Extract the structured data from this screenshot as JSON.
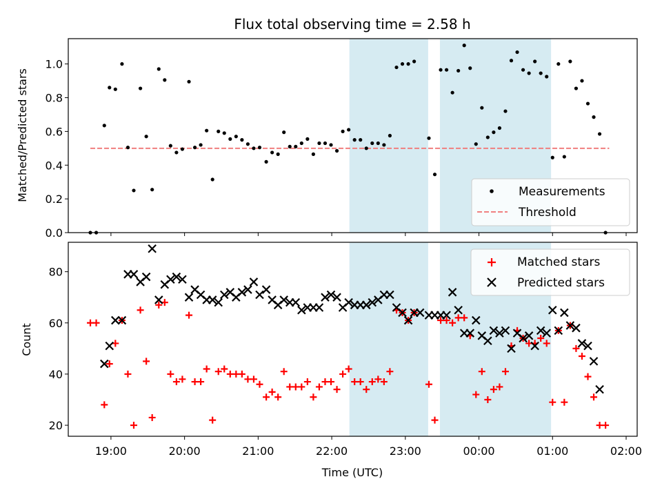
{
  "figure": {
    "title": "Flux total observing time = 2.58 h",
    "xlabel": "Time (UTC)",
    "x_tick_labels": [
      "19:00",
      "20:00",
      "21:00",
      "22:00",
      "23:00",
      "00:00",
      "01:00",
      "02:00"
    ]
  },
  "colors": {
    "measurement": "#000000",
    "threshold": "#f07f7f",
    "matched": "#ff0000",
    "predicted": "#000000",
    "span": "#add8e6"
  },
  "chart_data": [
    {
      "type": "scatter",
      "ylabel": "Matched/Predicted stars",
      "xlim": [
        18.42,
        26.15
      ],
      "ylim": [
        0,
        1.15
      ],
      "y_ticks": [
        0.0,
        0.2,
        0.4,
        0.6,
        0.8,
        1.0
      ],
      "y_tick_labels": [
        "0.0",
        "0.2",
        "0.4",
        "0.6",
        "0.8",
        "1.0"
      ],
      "shaded_spans": [
        [
          22.24,
          23.31
        ],
        [
          23.47,
          24.98
        ]
      ],
      "legend": {
        "position": "lower right",
        "entries": [
          "Measurements",
          "Threshold"
        ]
      },
      "threshold": {
        "name": "Threshold",
        "y": 0.5,
        "x_range": [
          18.72,
          25.77
        ]
      },
      "series": [
        {
          "name": "Measurements",
          "points": [
            [
              18.72,
              0.0
            ],
            [
              18.8,
              0.0
            ],
            [
              18.91,
              0.635
            ],
            [
              18.98,
              0.86
            ],
            [
              19.06,
              0.85
            ],
            [
              19.15,
              1.0
            ],
            [
              19.23,
              0.505
            ],
            [
              19.31,
              0.25
            ],
            [
              19.4,
              0.855
            ],
            [
              19.48,
              0.57
            ],
            [
              19.56,
              0.255
            ],
            [
              19.65,
              0.97
            ],
            [
              19.73,
              0.905
            ],
            [
              19.81,
              0.515
            ],
            [
              19.89,
              0.475
            ],
            [
              19.97,
              0.495
            ],
            [
              20.06,
              0.895
            ],
            [
              20.14,
              0.505
            ],
            [
              20.22,
              0.52
            ],
            [
              20.3,
              0.605
            ],
            [
              20.38,
              0.315
            ],
            [
              20.46,
              0.6
            ],
            [
              20.54,
              0.59
            ],
            [
              20.62,
              0.555
            ],
            [
              20.7,
              0.57
            ],
            [
              20.78,
              0.55
            ],
            [
              20.86,
              0.525
            ],
            [
              20.94,
              0.5
            ],
            [
              21.02,
              0.505
            ],
            [
              21.11,
              0.42
            ],
            [
              21.19,
              0.475
            ],
            [
              21.27,
              0.465
            ],
            [
              21.35,
              0.595
            ],
            [
              21.43,
              0.51
            ],
            [
              21.51,
              0.51
            ],
            [
              21.59,
              0.53
            ],
            [
              21.67,
              0.555
            ],
            [
              21.75,
              0.465
            ],
            [
              21.83,
              0.53
            ],
            [
              21.91,
              0.53
            ],
            [
              21.99,
              0.52
            ],
            [
              22.07,
              0.485
            ],
            [
              22.15,
              0.6
            ],
            [
              22.23,
              0.61
            ],
            [
              22.31,
              0.55
            ],
            [
              22.39,
              0.55
            ],
            [
              22.47,
              0.5
            ],
            [
              22.55,
              0.53
            ],
            [
              22.63,
              0.53
            ],
            [
              22.71,
              0.52
            ],
            [
              22.79,
              0.575
            ],
            [
              22.88,
              0.98
            ],
            [
              22.96,
              1.0
            ],
            [
              23.04,
              1.0
            ],
            [
              23.12,
              1.015
            ],
            [
              23.32,
              0.56
            ],
            [
              23.4,
              0.345
            ],
            [
              23.48,
              0.965
            ],
            [
              23.56,
              0.965
            ],
            [
              23.64,
              0.83
            ],
            [
              23.72,
              0.96
            ],
            [
              23.8,
              1.11
            ],
            [
              23.88,
              0.975
            ],
            [
              23.96,
              0.525
            ],
            [
              24.04,
              0.74
            ],
            [
              24.12,
              0.565
            ],
            [
              24.2,
              0.595
            ],
            [
              24.28,
              0.62
            ],
            [
              24.36,
              0.72
            ],
            [
              24.44,
              1.02
            ],
            [
              24.52,
              1.07
            ],
            [
              24.6,
              0.965
            ],
            [
              24.68,
              0.945
            ],
            [
              24.76,
              1.015
            ],
            [
              24.84,
              0.945
            ],
            [
              24.92,
              0.925
            ],
            [
              25.0,
              0.445
            ],
            [
              25.08,
              1.0
            ],
            [
              25.16,
              0.45
            ],
            [
              25.24,
              1.015
            ],
            [
              25.32,
              0.855
            ],
            [
              25.4,
              0.9
            ],
            [
              25.48,
              0.765
            ],
            [
              25.56,
              0.685
            ],
            [
              25.64,
              0.585
            ],
            [
              25.72,
              0.0
            ]
          ]
        }
      ]
    },
    {
      "type": "scatter",
      "ylabel": "Count",
      "xlim": [
        18.42,
        26.15
      ],
      "ylim": [
        15.7,
        91.5
      ],
      "y_ticks": [
        20,
        40,
        60,
        80
      ],
      "y_tick_labels": [
        "20",
        "40",
        "60",
        "80"
      ],
      "shaded_spans": [
        [
          22.24,
          23.31
        ],
        [
          23.47,
          24.98
        ]
      ],
      "legend": {
        "position": "upper right",
        "entries": [
          "Matched stars",
          "Predicted stars"
        ]
      },
      "series": [
        {
          "name": "Matched stars",
          "marker": "plus",
          "points": [
            [
              18.72,
              60
            ],
            [
              18.8,
              60
            ],
            [
              18.91,
              28
            ],
            [
              18.98,
              44
            ],
            [
              19.06,
              52
            ],
            [
              19.15,
              61
            ],
            [
              19.23,
              40
            ],
            [
              19.31,
              20
            ],
            [
              19.4,
              65
            ],
            [
              19.48,
              45
            ],
            [
              19.56,
              23
            ],
            [
              19.65,
              67
            ],
            [
              19.73,
              68
            ],
            [
              19.81,
              40
            ],
            [
              19.89,
              37
            ],
            [
              19.97,
              38
            ],
            [
              20.06,
              63
            ],
            [
              20.14,
              37
            ],
            [
              20.22,
              37
            ],
            [
              20.3,
              42
            ],
            [
              20.38,
              22
            ],
            [
              20.46,
              41
            ],
            [
              20.54,
              42
            ],
            [
              20.62,
              40
            ],
            [
              20.7,
              40
            ],
            [
              20.78,
              40
            ],
            [
              20.86,
              38
            ],
            [
              20.94,
              38
            ],
            [
              21.02,
              36
            ],
            [
              21.11,
              31
            ],
            [
              21.19,
              33
            ],
            [
              21.27,
              31
            ],
            [
              21.35,
              41
            ],
            [
              21.43,
              35
            ],
            [
              21.51,
              35
            ],
            [
              21.59,
              35
            ],
            [
              21.67,
              37
            ],
            [
              21.75,
              31
            ],
            [
              21.83,
              35
            ],
            [
              21.91,
              37
            ],
            [
              21.99,
              37
            ],
            [
              22.07,
              34
            ],
            [
              22.15,
              40
            ],
            [
              22.23,
              42
            ],
            [
              22.31,
              37
            ],
            [
              22.39,
              37
            ],
            [
              22.47,
              34
            ],
            [
              22.55,
              37
            ],
            [
              22.63,
              38
            ],
            [
              22.71,
              37
            ],
            [
              22.79,
              41
            ],
            [
              22.88,
              65
            ],
            [
              22.96,
              64
            ],
            [
              23.04,
              61
            ],
            [
              23.12,
              64
            ],
            [
              23.32,
              36
            ],
            [
              23.4,
              22
            ],
            [
              23.48,
              61
            ],
            [
              23.56,
              61
            ],
            [
              23.64,
              60
            ],
            [
              23.72,
              62
            ],
            [
              23.8,
              62
            ],
            [
              23.88,
              55
            ],
            [
              23.96,
              32
            ],
            [
              24.04,
              41
            ],
            [
              24.12,
              30
            ],
            [
              24.2,
              34
            ],
            [
              24.28,
              35
            ],
            [
              24.36,
              41
            ],
            [
              24.44,
              51
            ],
            [
              24.52,
              57
            ],
            [
              24.6,
              54
            ],
            [
              24.68,
              52
            ],
            [
              24.76,
              52
            ],
            [
              24.84,
              54
            ],
            [
              24.92,
              52
            ],
            [
              25.0,
              29
            ],
            [
              25.08,
              57
            ],
            [
              25.16,
              29
            ],
            [
              25.24,
              59
            ],
            [
              25.32,
              50
            ],
            [
              25.4,
              47
            ],
            [
              25.48,
              39
            ],
            [
              25.56,
              31
            ],
            [
              25.64,
              20
            ],
            [
              25.72,
              20
            ]
          ]
        },
        {
          "name": "Predicted stars",
          "marker": "x",
          "points": [
            [
              18.91,
              44
            ],
            [
              18.98,
              51
            ],
            [
              19.06,
              61
            ],
            [
              19.15,
              61
            ],
            [
              19.23,
              79
            ],
            [
              19.31,
              79
            ],
            [
              19.4,
              76
            ],
            [
              19.48,
              78
            ],
            [
              19.56,
              89
            ],
            [
              19.65,
              69
            ],
            [
              19.73,
              75
            ],
            [
              19.81,
              77
            ],
            [
              19.89,
              78
            ],
            [
              19.97,
              77
            ],
            [
              20.06,
              70
            ],
            [
              20.14,
              73
            ],
            [
              20.22,
              71
            ],
            [
              20.3,
              69
            ],
            [
              20.38,
              69
            ],
            [
              20.46,
              68
            ],
            [
              20.54,
              71
            ],
            [
              20.62,
              72
            ],
            [
              20.7,
              70
            ],
            [
              20.78,
              72
            ],
            [
              20.86,
              73
            ],
            [
              20.94,
              76
            ],
            [
              21.02,
              71
            ],
            [
              21.11,
              73
            ],
            [
              21.19,
              69
            ],
            [
              21.27,
              67
            ],
            [
              21.35,
              69
            ],
            [
              21.43,
              68
            ],
            [
              21.51,
              68
            ],
            [
              21.59,
              65
            ],
            [
              21.67,
              66
            ],
            [
              21.75,
              66
            ],
            [
              21.83,
              66
            ],
            [
              21.91,
              70
            ],
            [
              21.99,
              71
            ],
            [
              22.07,
              70
            ],
            [
              22.15,
              66
            ],
            [
              22.23,
              68
            ],
            [
              22.31,
              67
            ],
            [
              22.39,
              67
            ],
            [
              22.47,
              67
            ],
            [
              22.55,
              68
            ],
            [
              22.63,
              69
            ],
            [
              22.71,
              71
            ],
            [
              22.79,
              71
            ],
            [
              22.88,
              66
            ],
            [
              22.96,
              64
            ],
            [
              23.04,
              61
            ],
            [
              23.12,
              64
            ],
            [
              23.2,
              64
            ],
            [
              23.32,
              63
            ],
            [
              23.4,
              63
            ],
            [
              23.48,
              63
            ],
            [
              23.56,
              63
            ],
            [
              23.64,
              72
            ],
            [
              23.72,
              65
            ],
            [
              23.8,
              56
            ],
            [
              23.88,
              56
            ],
            [
              23.96,
              61
            ],
            [
              24.04,
              55
            ],
            [
              24.12,
              53
            ],
            [
              24.2,
              57
            ],
            [
              24.28,
              56
            ],
            [
              24.36,
              57
            ],
            [
              24.44,
              50
            ],
            [
              24.52,
              56
            ],
            [
              24.6,
              54
            ],
            [
              24.68,
              55
            ],
            [
              24.76,
              51
            ],
            [
              24.84,
              57
            ],
            [
              24.92,
              56
            ],
            [
              25.0,
              65
            ],
            [
              25.08,
              57
            ],
            [
              25.16,
              64
            ],
            [
              25.24,
              59
            ],
            [
              25.32,
              58
            ],
            [
              25.4,
              52
            ],
            [
              25.48,
              51
            ],
            [
              25.56,
              45
            ],
            [
              25.64,
              34
            ]
          ]
        }
      ]
    }
  ]
}
